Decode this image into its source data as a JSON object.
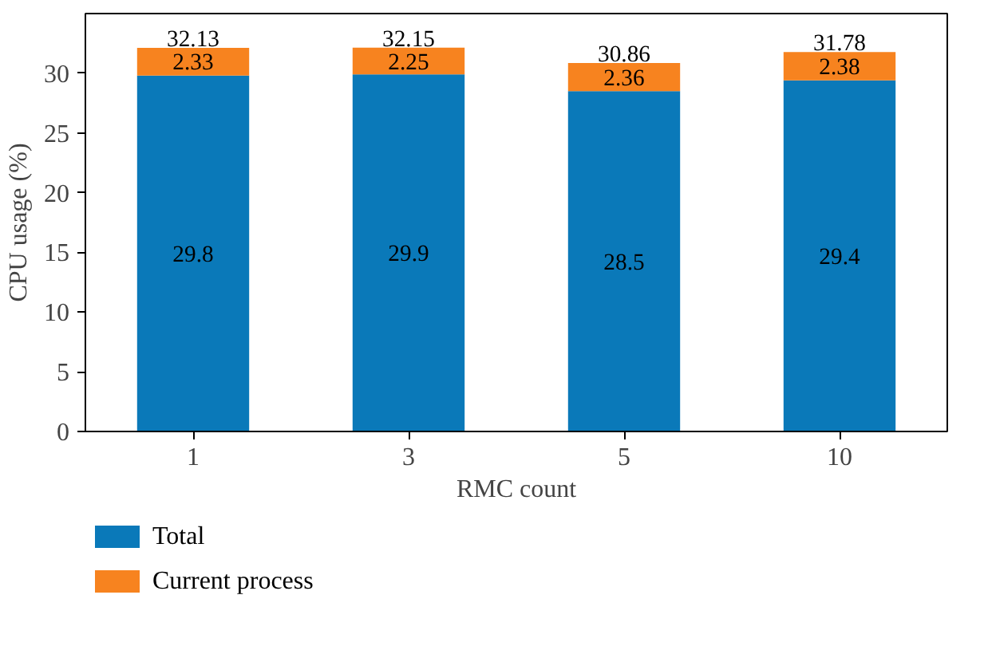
{
  "chart_data": {
    "type": "bar",
    "xlabel": "RMC count",
    "ylabel": "CPU usage (%)",
    "categories": [
      "1",
      "3",
      "5",
      "10"
    ],
    "series": [
      {
        "name": "Total",
        "color": "#0a79b9",
        "values": [
          29.8,
          29.9,
          28.5,
          29.4
        ]
      },
      {
        "name": "Current process",
        "color": "#f7831f",
        "values": [
          2.33,
          2.25,
          2.36,
          2.38
        ]
      }
    ],
    "stacked": true,
    "ylim": [
      0,
      35
    ],
    "yticks": [
      0,
      5,
      10,
      15,
      20,
      25,
      30
    ],
    "data_labels": true,
    "totals": [
      "32.13",
      "32.15",
      "30.86",
      "31.78"
    ],
    "grid": false,
    "legend": "bottom"
  }
}
